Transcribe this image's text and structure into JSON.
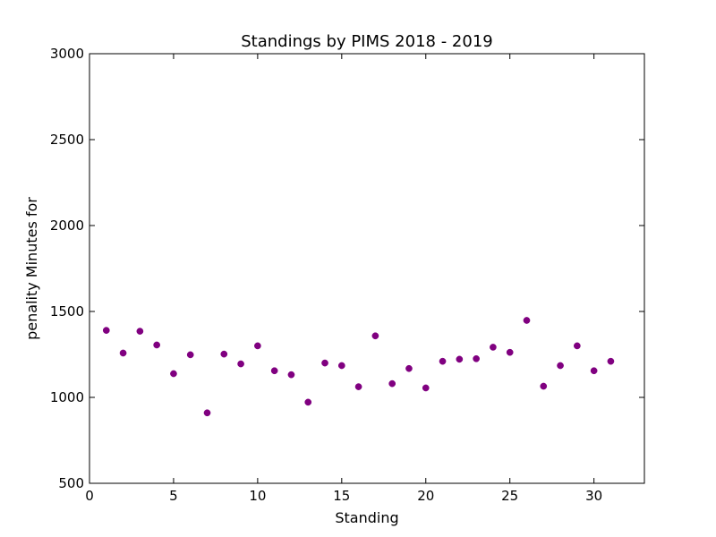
{
  "chart_data": {
    "type": "scatter",
    "title": "Standings by PIMS 2018 - 2019",
    "xlabel": "Standing",
    "ylabel": "penality Minutes for",
    "xlim": [
      0,
      33
    ],
    "ylim": [
      500,
      3000
    ],
    "xticks": [
      0,
      5,
      10,
      15,
      20,
      25,
      30
    ],
    "yticks": [
      500,
      1000,
      1500,
      2000,
      2500,
      3000
    ],
    "grid": false,
    "marker_color": "#800080",
    "x": [
      1,
      2,
      3,
      4,
      5,
      6,
      7,
      8,
      9,
      10,
      11,
      12,
      13,
      14,
      15,
      16,
      17,
      18,
      19,
      20,
      21,
      22,
      23,
      24,
      25,
      26,
      27,
      28,
      29,
      30,
      31
    ],
    "y": [
      1390,
      1258,
      1385,
      1305,
      1138,
      1248,
      910,
      1252,
      1195,
      1300,
      1155,
      1132,
      972,
      1200,
      1185,
      1062,
      1358,
      1080,
      1168,
      1055,
      1210,
      1222,
      1225,
      1292,
      1262,
      1448,
      1065,
      1185,
      1300,
      1155,
      1210
    ]
  }
}
